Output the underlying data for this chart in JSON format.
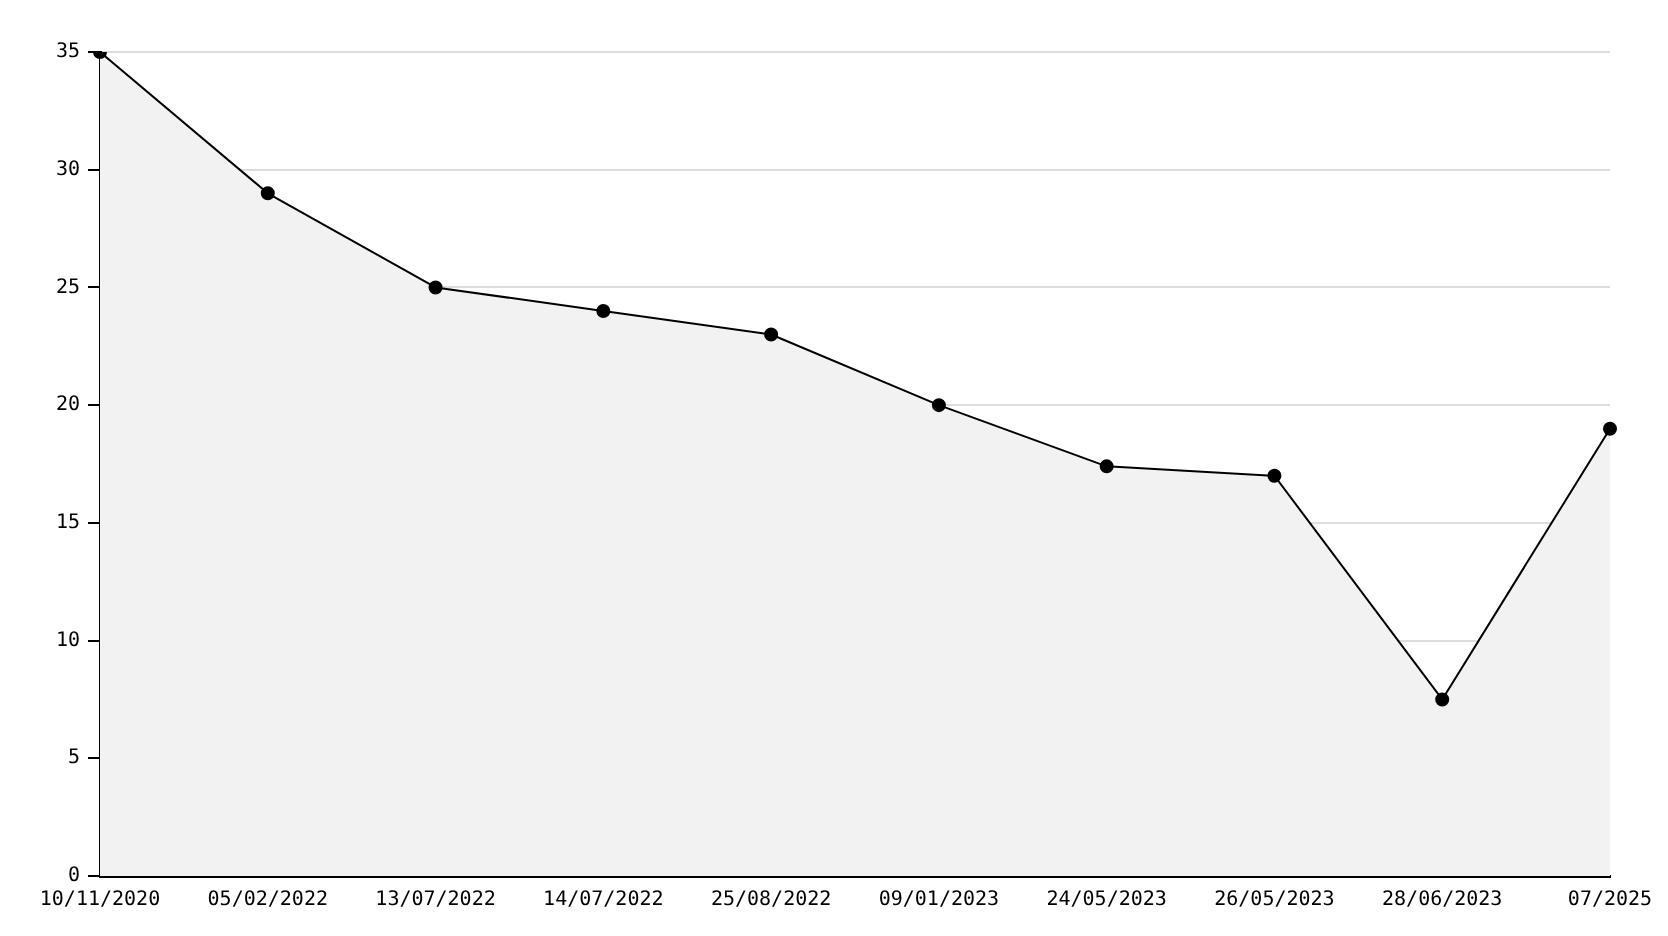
{
  "chart_data": {
    "type": "area",
    "categories": [
      "10/11/2020",
      "05/02/2022",
      "13/07/2022",
      "14/07/2022",
      "25/08/2022",
      "09/01/2023",
      "24/05/2023",
      "26/05/2023",
      "28/06/2023",
      "07/2025"
    ],
    "series": [
      {
        "color": "#000000",
        "values": [
          35,
          29,
          25,
          24,
          23,
          20,
          17.4,
          17,
          7.5,
          19
        ]
      }
    ],
    "ylim": [
      0,
      35
    ],
    "yticks": [
      0,
      5,
      10,
      15,
      20,
      25,
      30,
      35
    ],
    "grid": "y",
    "legend": false,
    "marker": "circle",
    "line_style": "solid"
  }
}
